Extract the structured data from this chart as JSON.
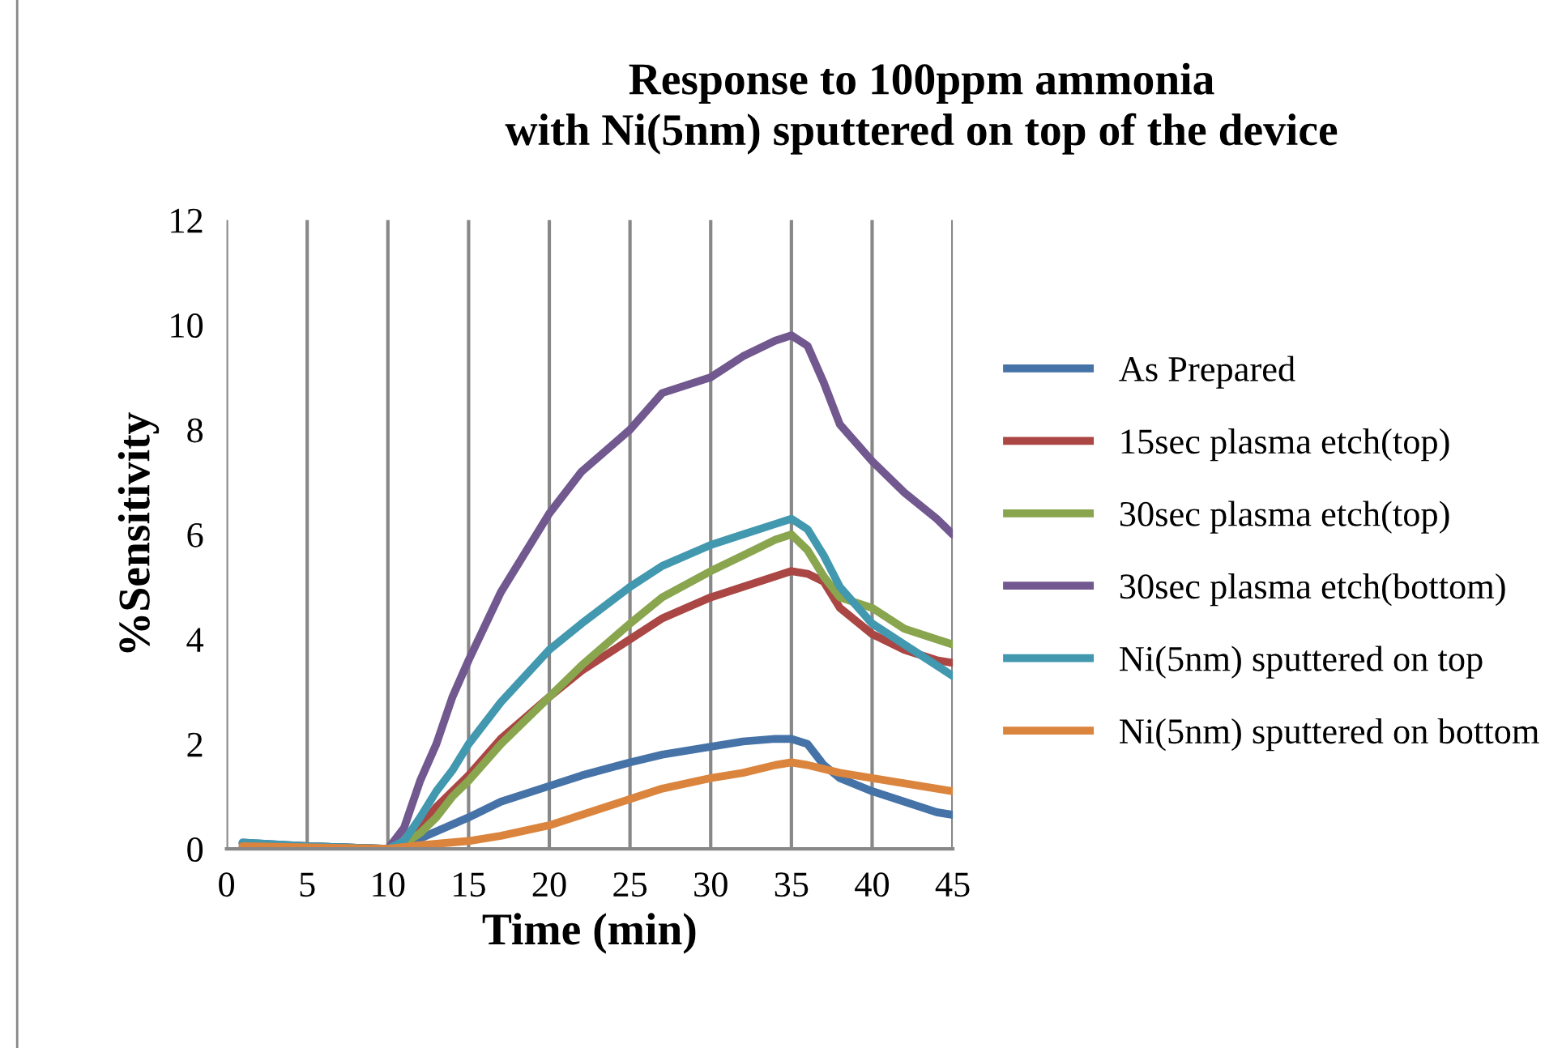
{
  "chart_data": {
    "type": "line",
    "title": "Response to 100ppm ammonia\nwith Ni(5nm) sputtered on top of the device",
    "xlabel": "Time (min)",
    "ylabel": "%Sensitivity",
    "xlim": [
      0,
      45
    ],
    "xticks": [
      0,
      5,
      10,
      15,
      20,
      25,
      30,
      35,
      40,
      45
    ],
    "ylim": [
      0,
      12
    ],
    "yticks": [
      0,
      2,
      4,
      6,
      8,
      10,
      12
    ],
    "grid": "x",
    "legend": "right",
    "marker": "none",
    "line_style": "solid",
    "series": [
      {
        "name": "As Prepared",
        "color": "#4572a7",
        "x": [
          1,
          5,
          10,
          12,
          15,
          17,
          20,
          22,
          25,
          27,
          30,
          32,
          34,
          35,
          36,
          37,
          38,
          40,
          42,
          44,
          45
        ],
        "values": [
          0.12,
          0.05,
          0,
          0.2,
          0.6,
          0.9,
          1.2,
          1.4,
          1.65,
          1.8,
          1.95,
          2.05,
          2.1,
          2.1,
          2.0,
          1.6,
          1.35,
          1.1,
          0.9,
          0.7,
          0.65
        ]
      },
      {
        "name": "15sec plasma etch(top)",
        "color": "#aa4643",
        "x": [
          1,
          10,
          11,
          12,
          13,
          14,
          15,
          17,
          20,
          22,
          25,
          27,
          30,
          32,
          34,
          35,
          36,
          37,
          38,
          40,
          42,
          44,
          45
        ],
        "values": [
          0.05,
          0,
          0.1,
          0.4,
          0.8,
          1.1,
          1.4,
          2.1,
          2.9,
          3.4,
          4.0,
          4.4,
          4.8,
          5.0,
          5.2,
          5.3,
          5.25,
          5.1,
          4.6,
          4.1,
          3.8,
          3.6,
          3.55
        ]
      },
      {
        "name": "30sec plasma etch(top)",
        "color": "#89a54e",
        "x": [
          1,
          5,
          10,
          11,
          12,
          13,
          14,
          15,
          17,
          20,
          22,
          25,
          27,
          30,
          32,
          34,
          35,
          36,
          37,
          38,
          40,
          42,
          44,
          45
        ],
        "values": [
          0.1,
          0.05,
          0,
          0.1,
          0.3,
          0.6,
          1.0,
          1.3,
          2.0,
          2.9,
          3.5,
          4.3,
          4.8,
          5.3,
          5.6,
          5.9,
          6.0,
          5.7,
          5.2,
          4.8,
          4.6,
          4.2,
          4.0,
          3.9
        ]
      },
      {
        "name": "30sec plasma etch(bottom)",
        "color": "#71588f",
        "x": [
          1,
          5,
          10,
          11,
          12,
          13,
          14,
          15,
          17,
          20,
          22,
          25,
          27,
          30,
          32,
          34,
          35,
          36,
          37,
          38,
          40,
          42,
          44,
          45
        ],
        "values": [
          0.1,
          0.05,
          0,
          0.4,
          1.3,
          2.0,
          2.9,
          3.6,
          4.9,
          6.4,
          7.2,
          8.0,
          8.7,
          9.0,
          9.4,
          9.7,
          9.8,
          9.6,
          8.9,
          8.1,
          7.4,
          6.8,
          6.3,
          6.0
        ]
      },
      {
        "name": "Ni(5nm) sputtered on top",
        "color": "#4198af",
        "x": [
          1,
          5,
          10,
          11,
          12,
          13,
          14,
          15,
          17,
          20,
          22,
          25,
          27,
          30,
          32,
          34,
          35,
          36,
          37,
          38,
          40,
          42,
          44,
          45
        ],
        "values": [
          0.12,
          0.05,
          0,
          0.15,
          0.6,
          1.1,
          1.5,
          2.0,
          2.8,
          3.8,
          4.3,
          5.0,
          5.4,
          5.8,
          6.0,
          6.2,
          6.3,
          6.1,
          5.6,
          5.0,
          4.3,
          3.9,
          3.5,
          3.3
        ]
      },
      {
        "name": "Ni(5nm) sputtered on bottom",
        "color": "#db843d",
        "x": [
          1,
          10,
          12,
          15,
          17,
          20,
          22,
          25,
          27,
          30,
          32,
          34,
          35,
          36,
          38,
          40,
          42,
          44,
          45
        ],
        "values": [
          0.05,
          0,
          0.07,
          0.15,
          0.25,
          0.45,
          0.65,
          0.95,
          1.15,
          1.35,
          1.45,
          1.6,
          1.65,
          1.6,
          1.45,
          1.35,
          1.25,
          1.15,
          1.1
        ]
      }
    ]
  }
}
